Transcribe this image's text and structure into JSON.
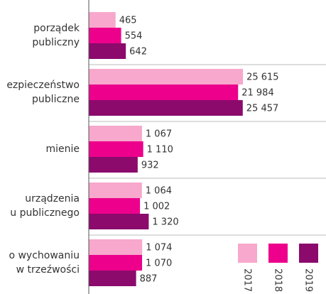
{
  "chart_data": {
    "type": "bar",
    "orientation": "horizontal",
    "x_scale": "log",
    "xlim": [
      200,
      100000
    ],
    "categories": [
      [
        "porządek",
        "publiczny"
      ],
      [
        "ezpieczeństwo",
        "publiczne"
      ],
      [
        "mienie"
      ],
      [
        "urządzenia",
        "u publicznego"
      ],
      [
        "o wychowaniu",
        "w trzeźwości"
      ]
    ],
    "series": [
      {
        "name": "2017",
        "color": "#f7a8cc",
        "values": [
          465,
          25615,
          1067,
          1064,
          1074
        ],
        "value_labels": [
          "465",
          "25 615",
          "1 067",
          "1 064",
          "1 074"
        ]
      },
      {
        "name": "2018",
        "color": "#ec008c",
        "values": [
          554,
          21984,
          1110,
          1002,
          1070
        ],
        "value_labels": [
          "554",
          "21 984",
          "1 110",
          "1 002",
          "1 070"
        ]
      },
      {
        "name": "2019",
        "color": "#8b0a6c",
        "values": [
          642,
          25457,
          932,
          1320,
          887
        ],
        "value_labels": [
          "642",
          "25 457",
          "932",
          "1 320",
          "887"
        ]
      }
    ],
    "legend_position": "lower right"
  }
}
